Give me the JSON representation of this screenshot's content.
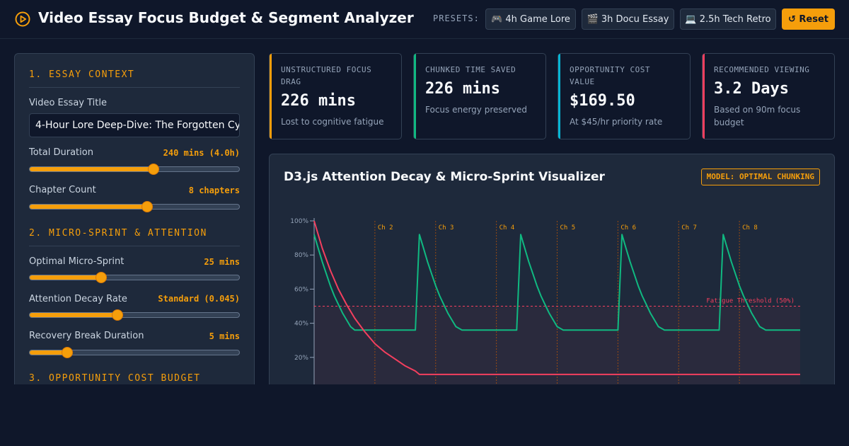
{
  "header": {
    "title": "Video Essay Focus Budget & Segment Analyzer",
    "presets_label": "PRESETS:",
    "presets": [
      "🎮 4h Game Lore",
      "🎬 3h Docu Essay",
      "💻 2.5h Tech Retro"
    ],
    "reset_label": "↺ Reset"
  },
  "sidebar": {
    "section1_title": "1. ESSAY CONTEXT",
    "title_label": "Video Essay Title",
    "title_value": "4-Hour Lore Deep-Dive: The Forgotten Cycle",
    "duration_label": "Total Duration",
    "duration_value": "240 mins (4.0h)",
    "duration_level": 0.59,
    "chapters_label": "Chapter Count",
    "chapters_value": "8 chapters",
    "chapters_level": 0.56,
    "section2_title": "2. MICRO-SPRINT & ATTENTION",
    "sprint_label": "Optimal Micro-Sprint",
    "sprint_value": "25 mins",
    "sprint_level": 0.34,
    "decay_label": "Attention Decay Rate",
    "decay_value": "Standard (0.045)",
    "decay_level": 0.42,
    "break_label": "Recovery Break Duration",
    "break_value": "5 mins",
    "break_level": 0.18,
    "section3_title": "3. OPPORTUNITY COST BUDGET"
  },
  "cards": [
    {
      "label": "UNSTRUCTURED FOCUS DRAG",
      "value": "226 mins",
      "sub": "Lost to cognitive fatigue",
      "color": "#f59e0b"
    },
    {
      "label": "CHUNKED TIME SAVED",
      "value": "226 mins",
      "sub": "Focus energy preserved",
      "color": "#10b981"
    },
    {
      "label": "OPPORTUNITY COST VALUE",
      "value": "$169.50",
      "sub": "At $45/hr priority rate",
      "color": "#06b6d4"
    },
    {
      "label": "RECOMMENDED VIEWING",
      "value": "3.2 Days",
      "sub": "Based on 90m focus budget",
      "color": "#f43f5e"
    }
  ],
  "viz": {
    "title": "D3.js Attention Decay & Micro-Sprint Visualizer",
    "badge": "MODEL: OPTIMAL CHUNKING"
  },
  "chart_data": {
    "type": "line",
    "y_ticks": [
      "100%",
      "80%",
      "60%",
      "40%",
      "20%"
    ],
    "ylim": [
      0,
      100
    ],
    "xlim": [
      0,
      240
    ],
    "chapter_labels": [
      "Ch 2",
      "Ch 3",
      "Ch 4",
      "Ch 5",
      "Ch 6",
      "Ch 7",
      "Ch 8"
    ],
    "chapter_starts": [
      30,
      60,
      90,
      120,
      150,
      180,
      210
    ],
    "threshold": {
      "value": 50,
      "label": "Fatigue Threshold (50%)",
      "color": "#f43f5e"
    },
    "series": [
      {
        "color": "#10b981",
        "x": [
          0,
          2,
          4,
          6,
          8,
          10,
          12,
          14,
          16,
          18,
          20,
          22,
          24,
          25,
          30,
          40,
          45,
          50,
          52,
          54,
          56,
          58,
          60,
          62,
          64,
          66,
          68,
          70,
          73,
          80,
          90,
          95,
          100,
          102,
          104,
          106,
          108,
          110,
          112,
          114,
          116,
          118,
          120,
          123,
          130,
          140,
          145,
          150,
          152,
          154,
          156,
          158,
          160,
          162,
          164,
          166,
          168,
          170,
          173,
          180,
          190,
          195,
          200,
          202,
          204,
          206,
          208,
          210,
          212,
          214,
          216,
          218,
          220,
          223,
          230,
          240
        ],
        "y": [
          92,
          84,
          76,
          69,
          62,
          56,
          51,
          46,
          42,
          38,
          36,
          36,
          36,
          36,
          36,
          36,
          36,
          36,
          92,
          84,
          76,
          69,
          62,
          56,
          51,
          46,
          42,
          38,
          36,
          36,
          36,
          36,
          36,
          92,
          84,
          76,
          69,
          62,
          56,
          51,
          46,
          42,
          38,
          36,
          36,
          36,
          36,
          36,
          92,
          84,
          76,
          69,
          62,
          56,
          51,
          46,
          42,
          38,
          36,
          36,
          36,
          36,
          36,
          92,
          84,
          76,
          69,
          62,
          56,
          51,
          46,
          42,
          38,
          36,
          36,
          36
        ]
      },
      {
        "color": "#f43f5e",
        "x": [
          0,
          4,
          8,
          12,
          16,
          20,
          25,
          30,
          35,
          40,
          45,
          50,
          52,
          60,
          80,
          100,
          140,
          180,
          220,
          240
        ],
        "y": [
          100,
          84,
          71,
          60,
          51,
          43,
          35,
          28,
          23,
          19,
          15,
          12,
          10,
          10,
          10,
          10,
          10,
          10,
          10,
          10
        ]
      }
    ]
  }
}
